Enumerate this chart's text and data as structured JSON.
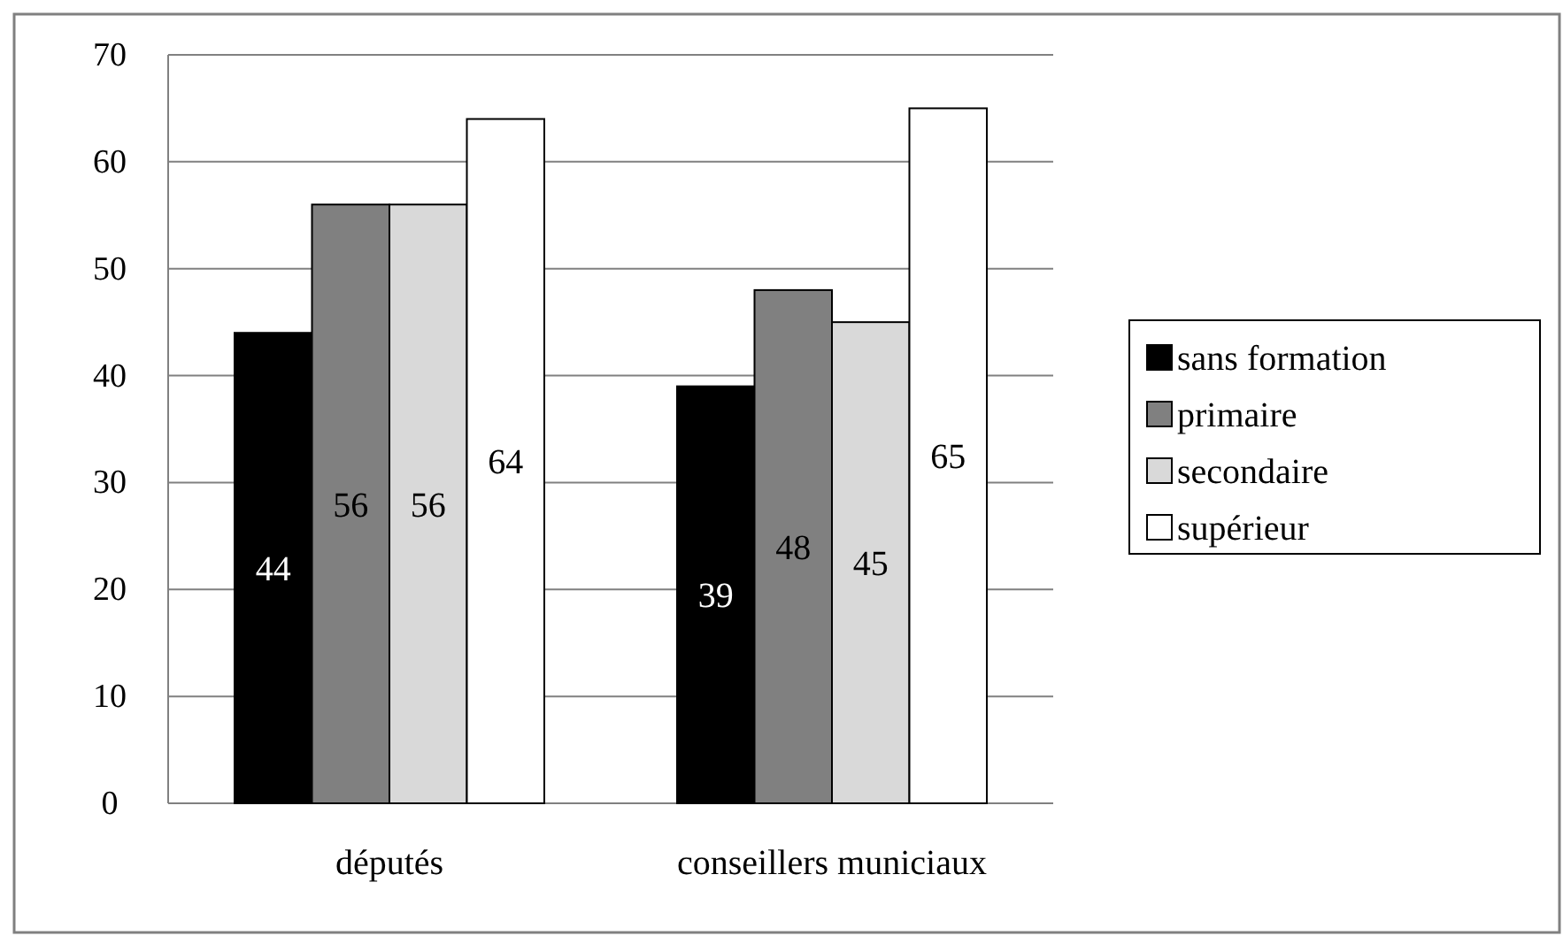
{
  "chart_data": {
    "type": "bar",
    "categories": [
      "députés",
      "conseillers municiaux"
    ],
    "series": [
      {
        "name": "sans formation",
        "color": "#000000",
        "values": [
          44,
          39
        ]
      },
      {
        "name": "primaire",
        "color": "#808080",
        "values": [
          56,
          48
        ]
      },
      {
        "name": "secondaire",
        "color": "#d9d9d9",
        "values": [
          56,
          45
        ]
      },
      {
        "name": "supérieur",
        "color": "#ffffff",
        "values": [
          64,
          65
        ]
      }
    ],
    "ylim": [
      0,
      70
    ],
    "yticks": [
      0,
      10,
      20,
      30,
      40,
      50,
      60,
      70
    ],
    "grid": "y",
    "legend": "right",
    "data_labels": true
  }
}
